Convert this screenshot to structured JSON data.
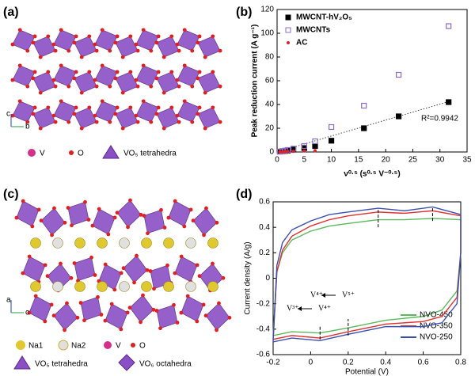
{
  "panels": {
    "a": "(a)",
    "b": "(b)",
    "c": "(c)",
    "d": "(d)"
  },
  "structure_a": {
    "legend": [
      "V",
      "O",
      "VO₅ tetrahedra"
    ],
    "axes": [
      "c",
      "b"
    ]
  },
  "structure_c": {
    "legend": [
      "Na1",
      "Na2",
      "V",
      "O",
      "VO₅ tetrahedra",
      "VO₆ octahedra"
    ],
    "axes": [
      "a",
      "c"
    ]
  },
  "chart_data": [
    {
      "type": "scatter",
      "xlabel": "ν⁰·⁵ (s⁰·⁵ V⁻⁰·⁵)",
      "ylabel": "Peak reduction current (A g⁻¹)",
      "x": [
        0.5,
        1,
        1.5,
        2,
        3,
        5,
        7,
        10,
        16,
        22.4,
        31.6
      ],
      "series": [
        {
          "name": "MWCNT-hV₂O₅",
          "color": "#000000",
          "marker": "square",
          "values": [
            0.3,
            0.6,
            0.9,
            1.2,
            2,
            3.3,
            5,
            9.5,
            20,
            30,
            42
          ]
        },
        {
          "name": "MWCNTs",
          "color": "#8a6cc0",
          "marker": "open-square",
          "values": [
            0.4,
            0.8,
            1.2,
            1.7,
            2.8,
            5,
            9,
            21,
            39,
            65,
            106
          ]
        },
        {
          "name": "AC",
          "color": "#e0202a",
          "marker": "circle",
          "values": [
            0.1,
            0.2,
            0.3,
            0.4,
            0.5,
            0.8,
            1.1,
            null,
            null,
            null,
            null
          ]
        }
      ],
      "trend": {
        "x": [
          0,
          32
        ],
        "values": [
          0,
          43
        ]
      },
      "annotation": "R²=0.9942",
      "xlim": [
        0,
        35
      ],
      "xticks": [
        0,
        5,
        10,
        15,
        20,
        25,
        30,
        35
      ],
      "ylim": [
        0,
        120
      ],
      "yticks": [
        0,
        20,
        40,
        60,
        80,
        100,
        120
      ],
      "legend": "upper-left"
    },
    {
      "type": "line",
      "xlabel": "Potential (V)",
      "ylabel": "Current density (A/g)",
      "series": [
        {
          "name": "NVO-450",
          "color": "#5cb85c",
          "x": [
            -0.2,
            -0.18,
            -0.15,
            -0.1,
            0,
            0.1,
            0.2,
            0.36,
            0.5,
            0.65,
            0.8,
            0.8,
            0.78,
            0.7,
            0.6,
            0.4,
            0.2,
            0.05,
            -0.1,
            -0.2
          ],
          "values": [
            -0.45,
            0.05,
            0.2,
            0.3,
            0.37,
            0.41,
            0.43,
            0.46,
            0.46,
            0.47,
            0.46,
            0.2,
            -0.1,
            -0.25,
            -0.3,
            -0.33,
            -0.39,
            -0.43,
            -0.42,
            -0.45
          ]
        },
        {
          "name": "NVO-350",
          "color": "#e03030",
          "x": [
            -0.2,
            -0.18,
            -0.15,
            -0.1,
            0,
            0.1,
            0.2,
            0.36,
            0.5,
            0.65,
            0.8,
            0.8,
            0.78,
            0.7,
            0.6,
            0.4,
            0.2,
            0.05,
            -0.1,
            -0.2
          ],
          "values": [
            -0.48,
            0.05,
            0.22,
            0.33,
            0.41,
            0.46,
            0.49,
            0.52,
            0.51,
            0.53,
            0.49,
            0.2,
            -0.15,
            -0.3,
            -0.34,
            -0.36,
            -0.42,
            -0.47,
            -0.45,
            -0.48
          ]
        },
        {
          "name": "NVO-250",
          "color": "#3a50b0",
          "x": [
            -0.2,
            -0.18,
            -0.15,
            -0.1,
            0,
            0.1,
            0.2,
            0.36,
            0.5,
            0.65,
            0.8,
            0.8,
            0.78,
            0.7,
            0.6,
            0.4,
            0.2,
            0.05,
            -0.1,
            -0.2
          ],
          "values": [
            -0.5,
            0.1,
            0.28,
            0.38,
            0.45,
            0.5,
            0.52,
            0.55,
            0.53,
            0.56,
            0.5,
            0.2,
            -0.2,
            -0.35,
            -0.38,
            -0.38,
            -0.44,
            -0.49,
            -0.47,
            -0.5
          ]
        }
      ],
      "peaks": [
        {
          "x": 0.36,
          "y": [
            0.4,
            0.54
          ]
        },
        {
          "x": 0.65,
          "y": [
            0.45,
            0.56
          ]
        },
        {
          "x": 0.05,
          "y": [
            -0.48,
            -0.37
          ]
        },
        {
          "x": 0.2,
          "y": [
            -0.45,
            -0.32
          ]
        }
      ],
      "annotations": [
        "V⁴⁺",
        "V⁵⁺",
        "V³⁺",
        "V⁴⁺"
      ],
      "xlim": [
        -0.2,
        0.8
      ],
      "xticks": [
        -0.2,
        0,
        0.2,
        0.4,
        0.6,
        0.8
      ],
      "ylim": [
        -0.6,
        0.6
      ],
      "yticks": [
        -0.6,
        -0.4,
        -0.2,
        0,
        0.2,
        0.4,
        0.6
      ],
      "legend": "lower-right"
    }
  ]
}
